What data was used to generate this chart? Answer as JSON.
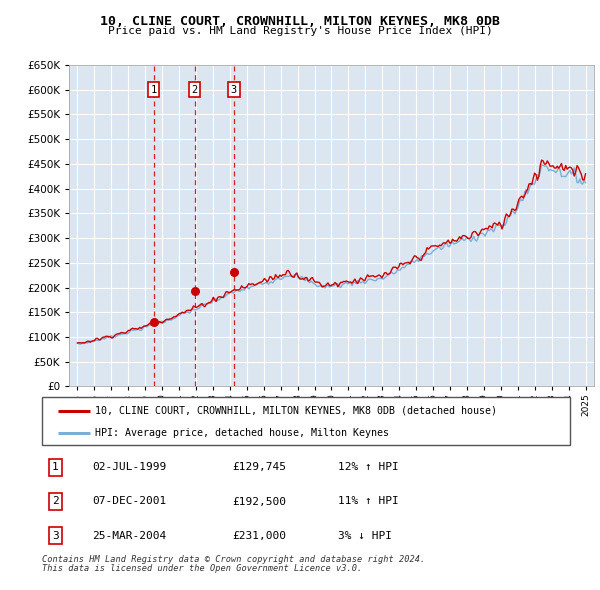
{
  "title": "10, CLINE COURT, CROWNHILL, MILTON KEYNES, MK8 0DB",
  "subtitle": "Price paid vs. HM Land Registry's House Price Index (HPI)",
  "hpi_label": "HPI: Average price, detached house, Milton Keynes",
  "property_label": "10, CLINE COURT, CROWNHILL, MILTON KEYNES, MK8 0DB (detached house)",
  "footer1": "Contains HM Land Registry data © Crown copyright and database right 2024.",
  "footer2": "This data is licensed under the Open Government Licence v3.0.",
  "transactions": [
    {
      "num": 1,
      "date": "02-JUL-1999",
      "price": "£129,745",
      "hpi": "12% ↑ HPI",
      "year": 1999.5,
      "price_val": 129745
    },
    {
      "num": 2,
      "date": "07-DEC-2001",
      "price": "£192,500",
      "hpi": "11% ↑ HPI",
      "year": 2001.92,
      "price_val": 192500
    },
    {
      "num": 3,
      "date": "25-MAR-2004",
      "price": "£231,000",
      "hpi": "3% ↓ HPI",
      "year": 2004.23,
      "price_val": 231000
    }
  ],
  "bg_color": "#dce6f1",
  "grid_color": "#ffffff",
  "red_color": "#cc0000",
  "blue_color": "#7bafd4",
  "ylim": [
    0,
    650000
  ],
  "yticks": [
    0,
    50000,
    100000,
    150000,
    200000,
    250000,
    300000,
    350000,
    400000,
    450000,
    500000,
    550000,
    600000,
    650000
  ],
  "xlim_start": 1994.5,
  "xlim_end": 2025.5
}
